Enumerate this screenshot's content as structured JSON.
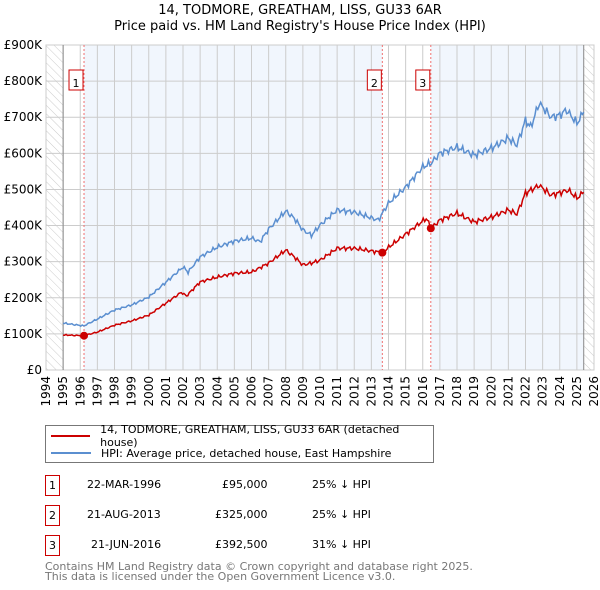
{
  "title_line1": "14, TODMORE, GREATHAM, LISS, GU33 6AR",
  "title_line2": "Price paid vs. HM Land Registry's House Price Index (HPI)",
  "chart_data": {
    "type": "line",
    "title": "14, TODMORE, GREATHAM, LISS, GU33 6AR — Price paid vs. HM Land Registry's House Price Index (HPI)",
    "xlim": [
      1994,
      2026
    ],
    "ylim": [
      0,
      900000
    ],
    "x_ticks": [
      "1994",
      "1995",
      "1996",
      "1997",
      "1998",
      "1999",
      "2000",
      "2001",
      "2002",
      "2003",
      "2004",
      "2005",
      "2006",
      "2007",
      "2008",
      "2009",
      "2010",
      "2011",
      "2012",
      "2013",
      "2014",
      "2015",
      "2016",
      "2017",
      "2018",
      "2019",
      "2020",
      "2021",
      "2022",
      "2023",
      "2024",
      "2025",
      "2026"
    ],
    "y_ticks": [
      {
        "v": 0,
        "label": "£0"
      },
      {
        "v": 100000,
        "label": "£100K"
      },
      {
        "v": 200000,
        "label": "£200K"
      },
      {
        "v": 300000,
        "label": "£300K"
      },
      {
        "v": 400000,
        "label": "£400K"
      },
      {
        "v": 500000,
        "label": "£500K"
      },
      {
        "v": 600000,
        "label": "£600K"
      },
      {
        "v": 700000,
        "label": "£700K"
      },
      {
        "v": 800000,
        "label": "£800K"
      },
      {
        "v": 900000,
        "label": "£900K"
      }
    ],
    "grid": true,
    "data_range": [
      1995,
      2025.4
    ],
    "series": [
      {
        "name": "14, TODMORE, GREATHAM, LISS, GU33 6AR (detached house)",
        "color": "#cc0000",
        "points": [
          [
            1995,
            97000
          ],
          [
            1996.2,
            95000
          ],
          [
            1997,
            105000
          ],
          [
            1998,
            124000
          ],
          [
            1999,
            136000
          ],
          [
            2000,
            152000
          ],
          [
            2001,
            185000
          ],
          [
            2001.9,
            215000
          ],
          [
            2002.2,
            205000
          ],
          [
            2003,
            244000
          ],
          [
            2004,
            257000
          ],
          [
            2005,
            268000
          ],
          [
            2006,
            271000
          ],
          [
            2007,
            296000
          ],
          [
            2008,
            332000
          ],
          [
            2008.5,
            313000
          ],
          [
            2009,
            291000
          ],
          [
            2009.5,
            296000
          ],
          [
            2010,
            304000
          ],
          [
            2011,
            337000
          ],
          [
            2012,
            337000
          ],
          [
            2013.6,
            325000
          ],
          [
            2015,
            376000
          ],
          [
            2016.2,
            420000
          ],
          [
            2016.5,
            392500
          ],
          [
            2017,
            415000
          ],
          [
            2018,
            434000
          ],
          [
            2019,
            410000
          ],
          [
            2020,
            423000
          ],
          [
            2021,
            443000
          ],
          [
            2021.5,
            432000
          ],
          [
            2022,
            490000
          ],
          [
            2022.8,
            511000
          ],
          [
            2023.5,
            484000
          ],
          [
            2024.5,
            498000
          ],
          [
            2025,
            476000
          ],
          [
            2025.4,
            492000
          ]
        ]
      },
      {
        "name": "HPI: Average price, detached house, East Hampshire",
        "color": "#5b8fd0",
        "points": [
          [
            1995,
            130000
          ],
          [
            1996.2,
            122000
          ],
          [
            1997,
            141000
          ],
          [
            1998,
            166000
          ],
          [
            1999,
            180000
          ],
          [
            2000,
            202000
          ],
          [
            2001,
            243000
          ],
          [
            2002,
            285000
          ],
          [
            2002.3,
            271000
          ],
          [
            2003,
            313000
          ],
          [
            2004,
            340000
          ],
          [
            2005,
            357000
          ],
          [
            2006,
            365000
          ],
          [
            2006.5,
            355000
          ],
          [
            2007,
            390000
          ],
          [
            2008,
            440000
          ],
          [
            2008.5,
            420000
          ],
          [
            2009,
            388000
          ],
          [
            2009.5,
            373000
          ],
          [
            2010,
            401000
          ],
          [
            2011,
            443000
          ],
          [
            2012,
            437000
          ],
          [
            2013.4,
            415000
          ],
          [
            2014,
            462000
          ],
          [
            2015,
            506000
          ],
          [
            2016,
            562000
          ],
          [
            2016.5,
            573000
          ],
          [
            2017,
            600000
          ],
          [
            2018,
            617000
          ],
          [
            2019,
            595000
          ],
          [
            2020,
            614000
          ],
          [
            2021,
            642000
          ],
          [
            2021.5,
            623000
          ],
          [
            2022,
            692000
          ],
          [
            2022.3,
            672000
          ],
          [
            2022.8,
            739000
          ],
          [
            2023.5,
            700000
          ],
          [
            2024,
            706000
          ],
          [
            2024.4,
            720000
          ],
          [
            2025,
            683000
          ],
          [
            2025.4,
            714000
          ]
        ]
      }
    ],
    "sales": [
      {
        "id": "1",
        "x": 1996.22,
        "price": 95000
      },
      {
        "id": "2",
        "x": 2013.64,
        "price": 325000
      },
      {
        "id": "3",
        "x": 2016.47,
        "price": 392500
      }
    ],
    "legend_placement": "below"
  },
  "legend": [
    {
      "label": "14, TODMORE, GREATHAM, LISS, GU33 6AR (detached house)",
      "color": "#cc0000"
    },
    {
      "label": "HPI: Average price, detached house, East Hampshire",
      "color": "#5b8fd0"
    }
  ],
  "transactions": [
    {
      "id": "1",
      "date": "22-MAR-1996",
      "price": "£95,000",
      "delta": "25% ↓ HPI"
    },
    {
      "id": "2",
      "date": "21-AUG-2013",
      "price": "£325,000",
      "delta": "25% ↓ HPI"
    },
    {
      "id": "3",
      "date": "21-JUN-2016",
      "price": "£392,500",
      "delta": "31% ↓ HPI"
    }
  ],
  "footer_line1": "Contains HM Land Registry data © Crown copyright and database right 2025.",
  "footer_line2": "This data is licensed under the Open Government Licence v3.0."
}
